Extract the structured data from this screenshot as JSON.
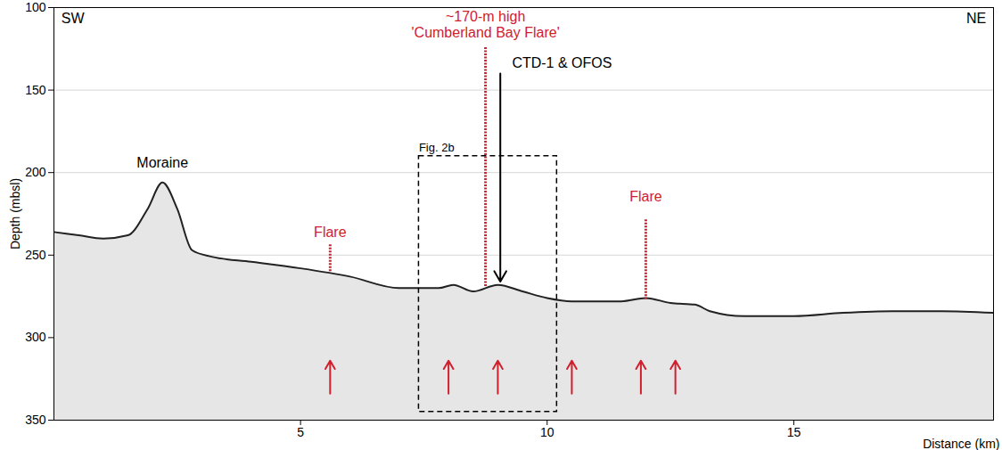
{
  "chart_data": {
    "type": "profile",
    "xlabel": "Distance (km)",
    "ylabel": "Depth (mbsl)",
    "xlim": [
      0,
      19.05
    ],
    "ylim": [
      350,
      100
    ],
    "xticks": [
      5,
      10,
      15
    ],
    "yticks": [
      100,
      150,
      200,
      250,
      300,
      350
    ],
    "grid": true,
    "seafloor": {
      "color": "#222222",
      "x": [
        0,
        0.5,
        1.0,
        1.5,
        1.9,
        2.2,
        2.5,
        2.8,
        3.2,
        4,
        5,
        6,
        7,
        7.8,
        8.1,
        8.5,
        9.0,
        9.5,
        10,
        10.5,
        11,
        11.5,
        12,
        12.5,
        13,
        13.3,
        14,
        15,
        16,
        17,
        18,
        19.05
      ],
      "values": [
        236,
        238,
        240,
        238,
        222,
        206,
        222,
        247,
        251,
        254,
        258,
        263,
        270,
        270,
        268,
        272,
        268,
        272,
        276,
        278,
        278,
        278,
        276,
        279,
        280,
        284,
        287,
        287,
        285,
        284,
        284,
        285
      ]
    },
    "flares": {
      "color": "#d0202e",
      "line_style": "dotted",
      "x": [
        5.6,
        8.75,
        12.0
      ],
      "base": [
        260,
        269,
        277
      ],
      "top": [
        243,
        124,
        228
      ]
    },
    "chimney_arrows": {
      "color": "#d0202e",
      "x": [
        5.6,
        8.0,
        9.0,
        10.5,
        11.9,
        12.6
      ],
      "from": 334,
      "to": 314
    },
    "ctd_arrow": {
      "color": "#000000",
      "x": 9.05,
      "from": 140,
      "to": 266
    },
    "box": {
      "color": "#000000",
      "line_style": "dashed",
      "x": [
        7.4,
        10.2
      ],
      "y": [
        190,
        345
      ],
      "label": "Fig. 2b"
    },
    "annotations": [
      {
        "text": "SW",
        "x": 0.15,
        "y": 106,
        "color": "#000000"
      },
      {
        "text": "NE",
        "x": 18.9,
        "y": 106,
        "color": "#000000"
      },
      {
        "text": "~170-m high\n'Cumberland Bay Flare'",
        "x": 8.75,
        "y": 110,
        "color": "#d0202e"
      },
      {
        "text": "CTD-1 & OFOS",
        "x": 10.3,
        "y": 133,
        "color": "#000000"
      },
      {
        "text": "Moraine",
        "x": 2.2,
        "y": 194,
        "color": "#000000"
      },
      {
        "text": "Flare",
        "x": 5.6,
        "y": 236,
        "color": "#d0202e"
      },
      {
        "text": "Flare",
        "x": 12.0,
        "y": 214,
        "color": "#d0202e"
      }
    ]
  }
}
